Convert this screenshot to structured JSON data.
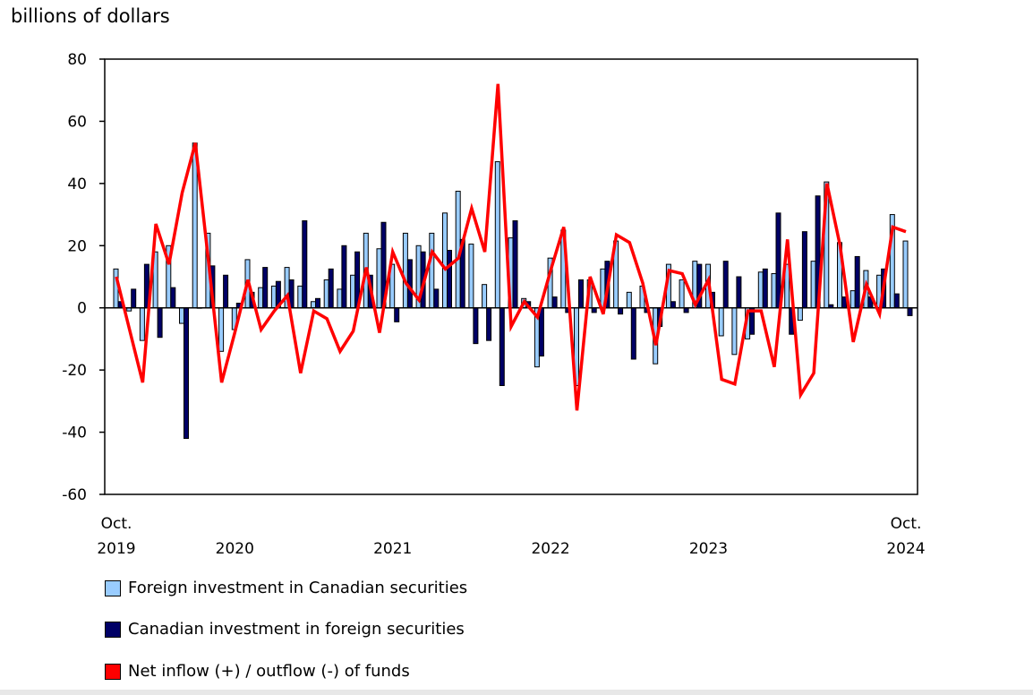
{
  "chart_data": {
    "type": "bar+line",
    "ylabel": "billions of dollars",
    "ylim": [
      -60,
      80
    ],
    "yticks": [
      80,
      60,
      40,
      20,
      0,
      -20,
      -40,
      -60
    ],
    "x_tick_labels": [
      {
        "month": "2019-10",
        "lines": [
          "Oct.",
          "2019"
        ]
      },
      {
        "month": "2020-07",
        "lines": [
          "",
          "2020"
        ]
      },
      {
        "month": "2021-07",
        "lines": [
          "",
          "2021"
        ]
      },
      {
        "month": "2022-07",
        "lines": [
          "",
          "2022"
        ]
      },
      {
        "month": "2023-07",
        "lines": [
          "",
          "2023"
        ]
      },
      {
        "month": "2024-10",
        "lines": [
          "Oct.",
          "2024"
        ]
      }
    ],
    "x": [
      "2019-10",
      "2019-11",
      "2019-12",
      "2020-01",
      "2020-02",
      "2020-03",
      "2020-04",
      "2020-05",
      "2020-06",
      "2020-07",
      "2020-08",
      "2020-09",
      "2020-10",
      "2020-11",
      "2020-12",
      "2021-01",
      "2021-02",
      "2021-03",
      "2021-04",
      "2021-05",
      "2021-06",
      "2021-07",
      "2021-08",
      "2021-09",
      "2021-10",
      "2021-11",
      "2021-12",
      "2022-01",
      "2022-02",
      "2022-03",
      "2022-04",
      "2022-05",
      "2022-06",
      "2022-07",
      "2022-08",
      "2022-09",
      "2022-10",
      "2022-11",
      "2022-12",
      "2023-01",
      "2023-02",
      "2023-03",
      "2023-04",
      "2023-05",
      "2023-06",
      "2023-07",
      "2023-08",
      "2023-09",
      "2023-10",
      "2023-11",
      "2023-12",
      "2024-01",
      "2024-02",
      "2024-03",
      "2024-04",
      "2024-05",
      "2024-06",
      "2024-07",
      "2024-08",
      "2024-09",
      "2024-10"
    ],
    "series": [
      {
        "name": "Foreign investment in Canadian securities",
        "type": "bar",
        "color": "#99ccff",
        "values": [
          12.5,
          -1,
          -10.5,
          18,
          20,
          -5,
          53,
          24,
          -14,
          -7,
          15.5,
          6.5,
          7,
          13,
          7,
          2,
          9,
          6,
          10.5,
          24,
          19,
          14,
          24,
          20,
          24,
          30.5,
          37.5,
          20.5,
          7.5,
          47,
          22.5,
          3,
          -19,
          16,
          25,
          -25,
          9,
          12.5,
          21.5,
          5,
          7,
          -18,
          14,
          9,
          15,
          14,
          -9,
          -15,
          -10,
          11.5,
          11,
          14,
          -4,
          15,
          40.5,
          21,
          5.5,
          12,
          10.5,
          30,
          21.5
        ]
      },
      {
        "name": "Canadian investment in foreign securities",
        "type": "bar",
        "color": "#000066",
        "values": [
          2,
          6,
          14,
          -9.5,
          6.5,
          -42,
          0,
          13.5,
          10.5,
          1.5,
          5,
          13,
          8.5,
          9,
          28,
          3,
          12.5,
          20,
          18,
          10.5,
          27.5,
          -4.5,
          15.5,
          18,
          6,
          18.5,
          22,
          -11.5,
          -10.5,
          -25,
          28,
          2,
          -15.5,
          3.5,
          -1.5,
          9,
          -1.5,
          15,
          -2,
          -16.5,
          -1.5,
          -6,
          2,
          -1.5,
          14,
          5,
          15,
          10,
          -8.5,
          12.5,
          30.5,
          -8.5,
          24.5,
          36,
          1,
          3.5,
          16.5,
          3.5,
          12.5,
          4.5,
          -2.5
        ]
      },
      {
        "name": "Net inflow (+) / outflow (-) of funds",
        "type": "line",
        "color": "#ff0000",
        "values": [
          10,
          -7,
          -24,
          27,
          14,
          37,
          53,
          15,
          -24,
          -8,
          9,
          -7,
          -1,
          4,
          -21,
          -1,
          -3.5,
          -14,
          -7.5,
          13,
          -8,
          18,
          8,
          2.5,
          18,
          12.5,
          16,
          32,
          18,
          72,
          -6,
          2,
          -3,
          12,
          26,
          -33,
          10,
          -2,
          23.5,
          21,
          8,
          -12,
          12,
          11,
          1,
          9,
          -23,
          -24.5,
          -1,
          -1,
          -19,
          22,
          -28,
          -21,
          40,
          20,
          -11,
          7.5,
          -2,
          26,
          24.5
        ]
      }
    ],
    "grid": false,
    "legend_position": "bottom"
  }
}
